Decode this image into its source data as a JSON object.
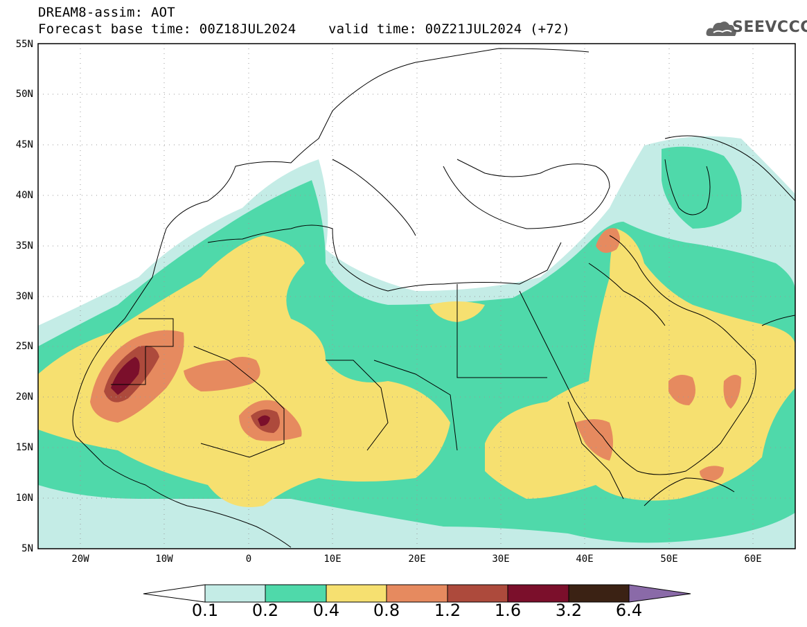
{
  "header": {
    "line1": "DREAM8-assim: AOT",
    "line2": "Forecast base time: 00Z18JUL2024    valid time: 00Z21JUL2024 (+72)",
    "logo_text": "SEEVCCC"
  },
  "map": {
    "lat_labels": [
      "55N",
      "50N",
      "45N",
      "40N",
      "35N",
      "30N",
      "25N",
      "20N",
      "15N",
      "10N",
      "5N"
    ],
    "lon_labels": [
      "20W",
      "10W",
      "0",
      "10E",
      "20E",
      "30E",
      "40E",
      "50E",
      "60E"
    ],
    "lat_range": [
      5,
      55
    ],
    "lon_range": [
      -25,
      65
    ],
    "grid": "dotted"
  },
  "colorbar": {
    "levels": [
      "0.1",
      "0.2",
      "0.4",
      "0.8",
      "1.2",
      "1.6",
      "3.2",
      "6.4"
    ],
    "colors": [
      "#ffffff",
      "#c4ece6",
      "#4fd9aa",
      "#f6e070",
      "#e68a5f",
      "#ad4a3c",
      "#7b0f2b",
      "#3b2214",
      "#8a6aa8"
    ]
  },
  "colors": {
    "c1": "#c4ece6",
    "c2": "#4fd9aa",
    "c3": "#f6e070",
    "c4": "#e68a5f",
    "c5": "#ad4a3c",
    "c6": "#7b0f2b",
    "c7": "#3b2214"
  }
}
